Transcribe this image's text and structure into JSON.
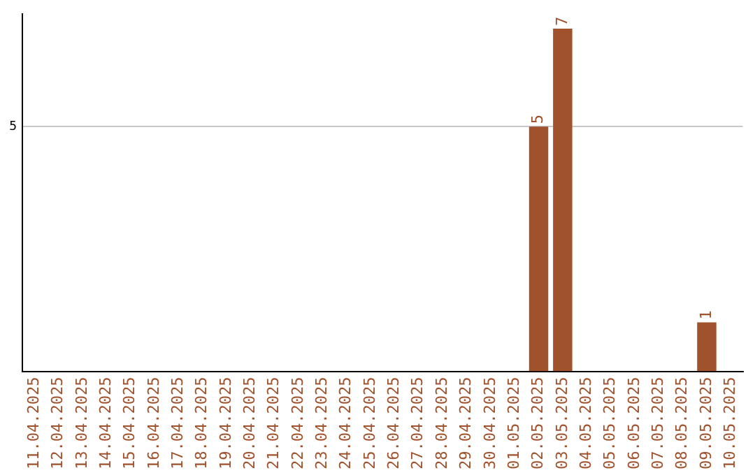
{
  "chart_data": {
    "type": "bar",
    "categories": [
      "11.04.2025",
      "12.04.2025",
      "13.04.2025",
      "14.04.2025",
      "15.04.2025",
      "16.04.2025",
      "17.04.2025",
      "18.04.2025",
      "19.04.2025",
      "20.04.2025",
      "21.04.2025",
      "22.04.2025",
      "23.04.2025",
      "24.04.2025",
      "25.04.2025",
      "26.04.2025",
      "27.04.2025",
      "28.04.2025",
      "29.04.2025",
      "30.04.2025",
      "01.05.2025",
      "02.05.2025",
      "03.05.2025",
      "04.05.2025",
      "05.05.2025",
      "06.05.2025",
      "07.05.2025",
      "08.05.2025",
      "09.05.2025",
      "10.05.2025"
    ],
    "values": [
      null,
      null,
      null,
      null,
      null,
      null,
      null,
      null,
      null,
      null,
      null,
      null,
      null,
      null,
      null,
      null,
      null,
      null,
      null,
      null,
      null,
      5,
      7,
      null,
      null,
      null,
      null,
      null,
      1,
      null
    ],
    "data_labels": true,
    "color": "#a0522d",
    "ylim": [
      0,
      7.3
    ],
    "yticks": [
      5
    ],
    "grid": "y",
    "legend": false
  }
}
